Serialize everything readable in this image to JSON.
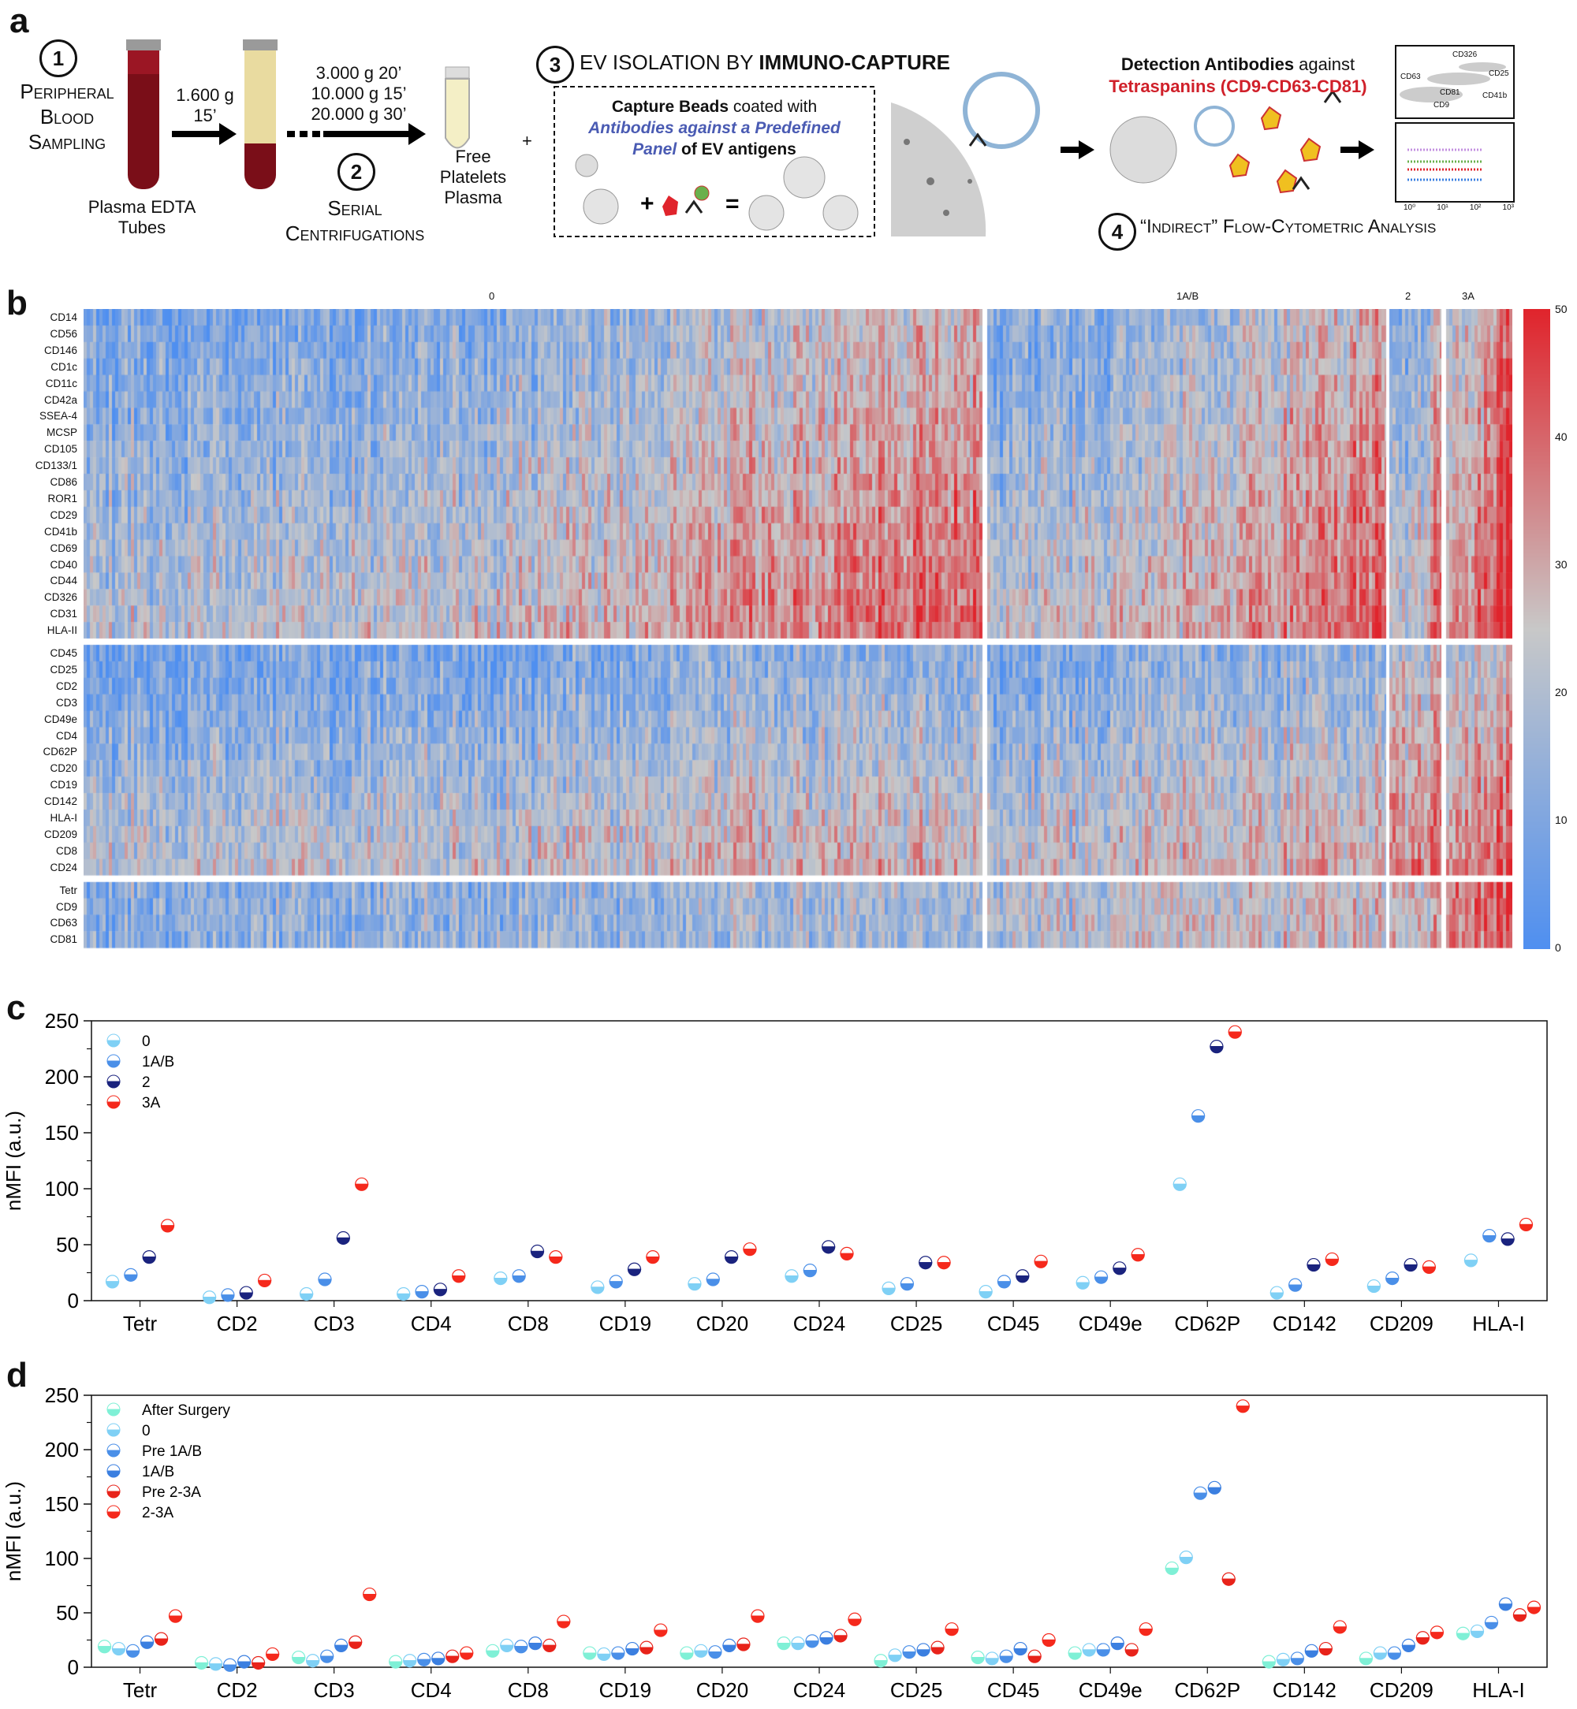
{
  "panel_a": {
    "label": "a",
    "step1_num": "1",
    "step1_label": [
      "Peripheral",
      "Blood",
      "Sampling"
    ],
    "tube_label": [
      "Plasma EDTA",
      "Tubes"
    ],
    "spin1": [
      "1.600 g",
      "15’"
    ],
    "spin2": [
      "3.000 g 20’",
      "10.000 g 15’",
      "20.000 g 30’"
    ],
    "step2_num": "2",
    "step2_label": [
      "Serial",
      "Centrifugations"
    ],
    "plasma_label": [
      "Free",
      "Platelets",
      "Plasma"
    ],
    "plus": "+",
    "step3_num": "3",
    "step3_title_pre": "EV ISOLATION BY",
    "step3_title_bold": "IMMUNO-CAPTURE",
    "capture_line1_bold": "Capture Beads",
    "capture_line1_rest": " coated with",
    "capture_line2": "Antibodies against a Predefined",
    "capture_line3_blue": "Panel",
    "capture_line3_rest": " of EV antigens",
    "detect_bold": "Detection Antibodies",
    "detect_rest": " against",
    "detect_red": "Tetraspanins (CD9-CD63-CD81)",
    "step4_num": "4",
    "step4_label": "“Indirect” Flow-Cytometric Analysis",
    "flow_labels": [
      "CD326",
      "CD63",
      "CD25",
      "CD81",
      "CD41b",
      "CD9"
    ],
    "flow_ticks": [
      "10⁰",
      "10¹",
      "10²",
      "10³"
    ],
    "colors": {
      "red": "#d0202a",
      "blue": "#4a5bb3",
      "tube_blood": "#8b0f1c",
      "plasma": "#e8d9a0"
    }
  },
  "panel_b": {
    "label": "b",
    "cluster_labels": [
      "0",
      "1A/B",
      "2",
      "3A"
    ],
    "rows_group1": [
      "CD14",
      "CD56",
      "CD146",
      "CD1c",
      "CD11c",
      "CD42a",
      "SSEA-4",
      "MCSP",
      "CD105",
      "CD133/1",
      "CD86",
      "ROR1",
      "CD29",
      "CD41b",
      "CD69",
      "CD40",
      "CD44",
      "CD326",
      "CD31",
      "HLA-II"
    ],
    "rows_group2": [
      "CD45",
      "CD25",
      "CD2",
      "CD3",
      "CD49e",
      "CD4",
      "CD62P",
      "CD20",
      "CD19",
      "CD142",
      "HLA-I",
      "CD209",
      "CD8",
      "CD24"
    ],
    "rows_group3": [
      "Tetr",
      "CD9",
      "CD63",
      "CD81"
    ],
    "colorbar_ticks": [
      "50",
      "40",
      "30",
      "20",
      "10",
      "0"
    ],
    "colors": {
      "low": "#4f8ff0",
      "mid": "#c8c8c8",
      "high": "#e0242c"
    }
  },
  "panel_c": {
    "label": "c",
    "chart_data": {
      "type": "scatter",
      "title": "",
      "xlabel": "",
      "ylabel": "nMFI (a.u.)",
      "ylim": [
        0,
        250
      ],
      "yticks": [
        "250",
        "200",
        "150",
        "100",
        "50",
        "0"
      ],
      "categories": [
        "Tetr",
        "CD2",
        "CD3",
        "CD4",
        "CD8",
        "CD19",
        "CD20",
        "CD24",
        "CD25",
        "CD45",
        "CD49e",
        "CD62P",
        "CD142",
        "CD209",
        "HLA-I"
      ],
      "series": [
        {
          "name": "0",
          "color": "#7fd0f5",
          "values": [
            17,
            3,
            6,
            6,
            20,
            12,
            15,
            22,
            11,
            8,
            16,
            104,
            7,
            13,
            36
          ]
        },
        {
          "name": "1A/B",
          "color": "#4a8fe8",
          "values": [
            23,
            5,
            19,
            8,
            22,
            17,
            19,
            27,
            15,
            17,
            21,
            165,
            14,
            20,
            58
          ]
        },
        {
          "name": "2",
          "color": "#1a237e",
          "values": [
            39,
            7,
            56,
            10,
            44,
            28,
            39,
            48,
            34,
            22,
            29,
            227,
            32,
            32,
            55
          ]
        },
        {
          "name": "3A",
          "color": "#f5291c",
          "values": [
            67,
            18,
            104,
            22,
            39,
            39,
            46,
            42,
            34,
            35,
            41,
            240,
            37,
            30,
            68
          ]
        }
      ]
    }
  },
  "panel_d": {
    "label": "d",
    "chart_data": {
      "type": "scatter",
      "title": "",
      "xlabel": "",
      "ylabel": "nMFI (a.u.)",
      "ylim": [
        0,
        250
      ],
      "yticks": [
        "250",
        "200",
        "150",
        "100",
        "50",
        "0"
      ],
      "categories": [
        "Tetr",
        "CD2",
        "CD3",
        "CD4",
        "CD8",
        "CD19",
        "CD20",
        "CD24",
        "CD25",
        "CD45",
        "CD49e",
        "CD62P",
        "CD142",
        "CD209",
        "HLA-I"
      ],
      "series": [
        {
          "name": "After Surgery",
          "color": "#7ff0d6",
          "values": [
            19,
            4,
            9,
            5,
            15,
            13,
            13,
            22,
            6,
            9,
            13,
            91,
            5,
            8,
            31
          ]
        },
        {
          "name": "0",
          "color": "#7fd0f5",
          "values": [
            17,
            3,
            6,
            6,
            20,
            12,
            15,
            22,
            11,
            8,
            16,
            101,
            7,
            13,
            33
          ]
        },
        {
          "name": "Pre 1A/B",
          "color": "#4a8fe8",
          "values": [
            15,
            2,
            10,
            7,
            19,
            13,
            14,
            24,
            14,
            10,
            16,
            160,
            8,
            13,
            41
          ]
        },
        {
          "name": "1A/B",
          "color": "#3b7fe0",
          "values": [
            23,
            5,
            20,
            8,
            22,
            17,
            20,
            27,
            16,
            17,
            22,
            165,
            15,
            20,
            58
          ]
        },
        {
          "name": "Pre 2-3A",
          "color": "#e8231a",
          "values": [
            26,
            4,
            23,
            10,
            20,
            18,
            21,
            29,
            18,
            10,
            16,
            81,
            17,
            27,
            48
          ]
        },
        {
          "name": "2-3A",
          "color": "#f5291c",
          "values": [
            47,
            12,
            67,
            13,
            42,
            34,
            47,
            44,
            35,
            25,
            35,
            240,
            37,
            32,
            55
          ]
        }
      ]
    }
  }
}
